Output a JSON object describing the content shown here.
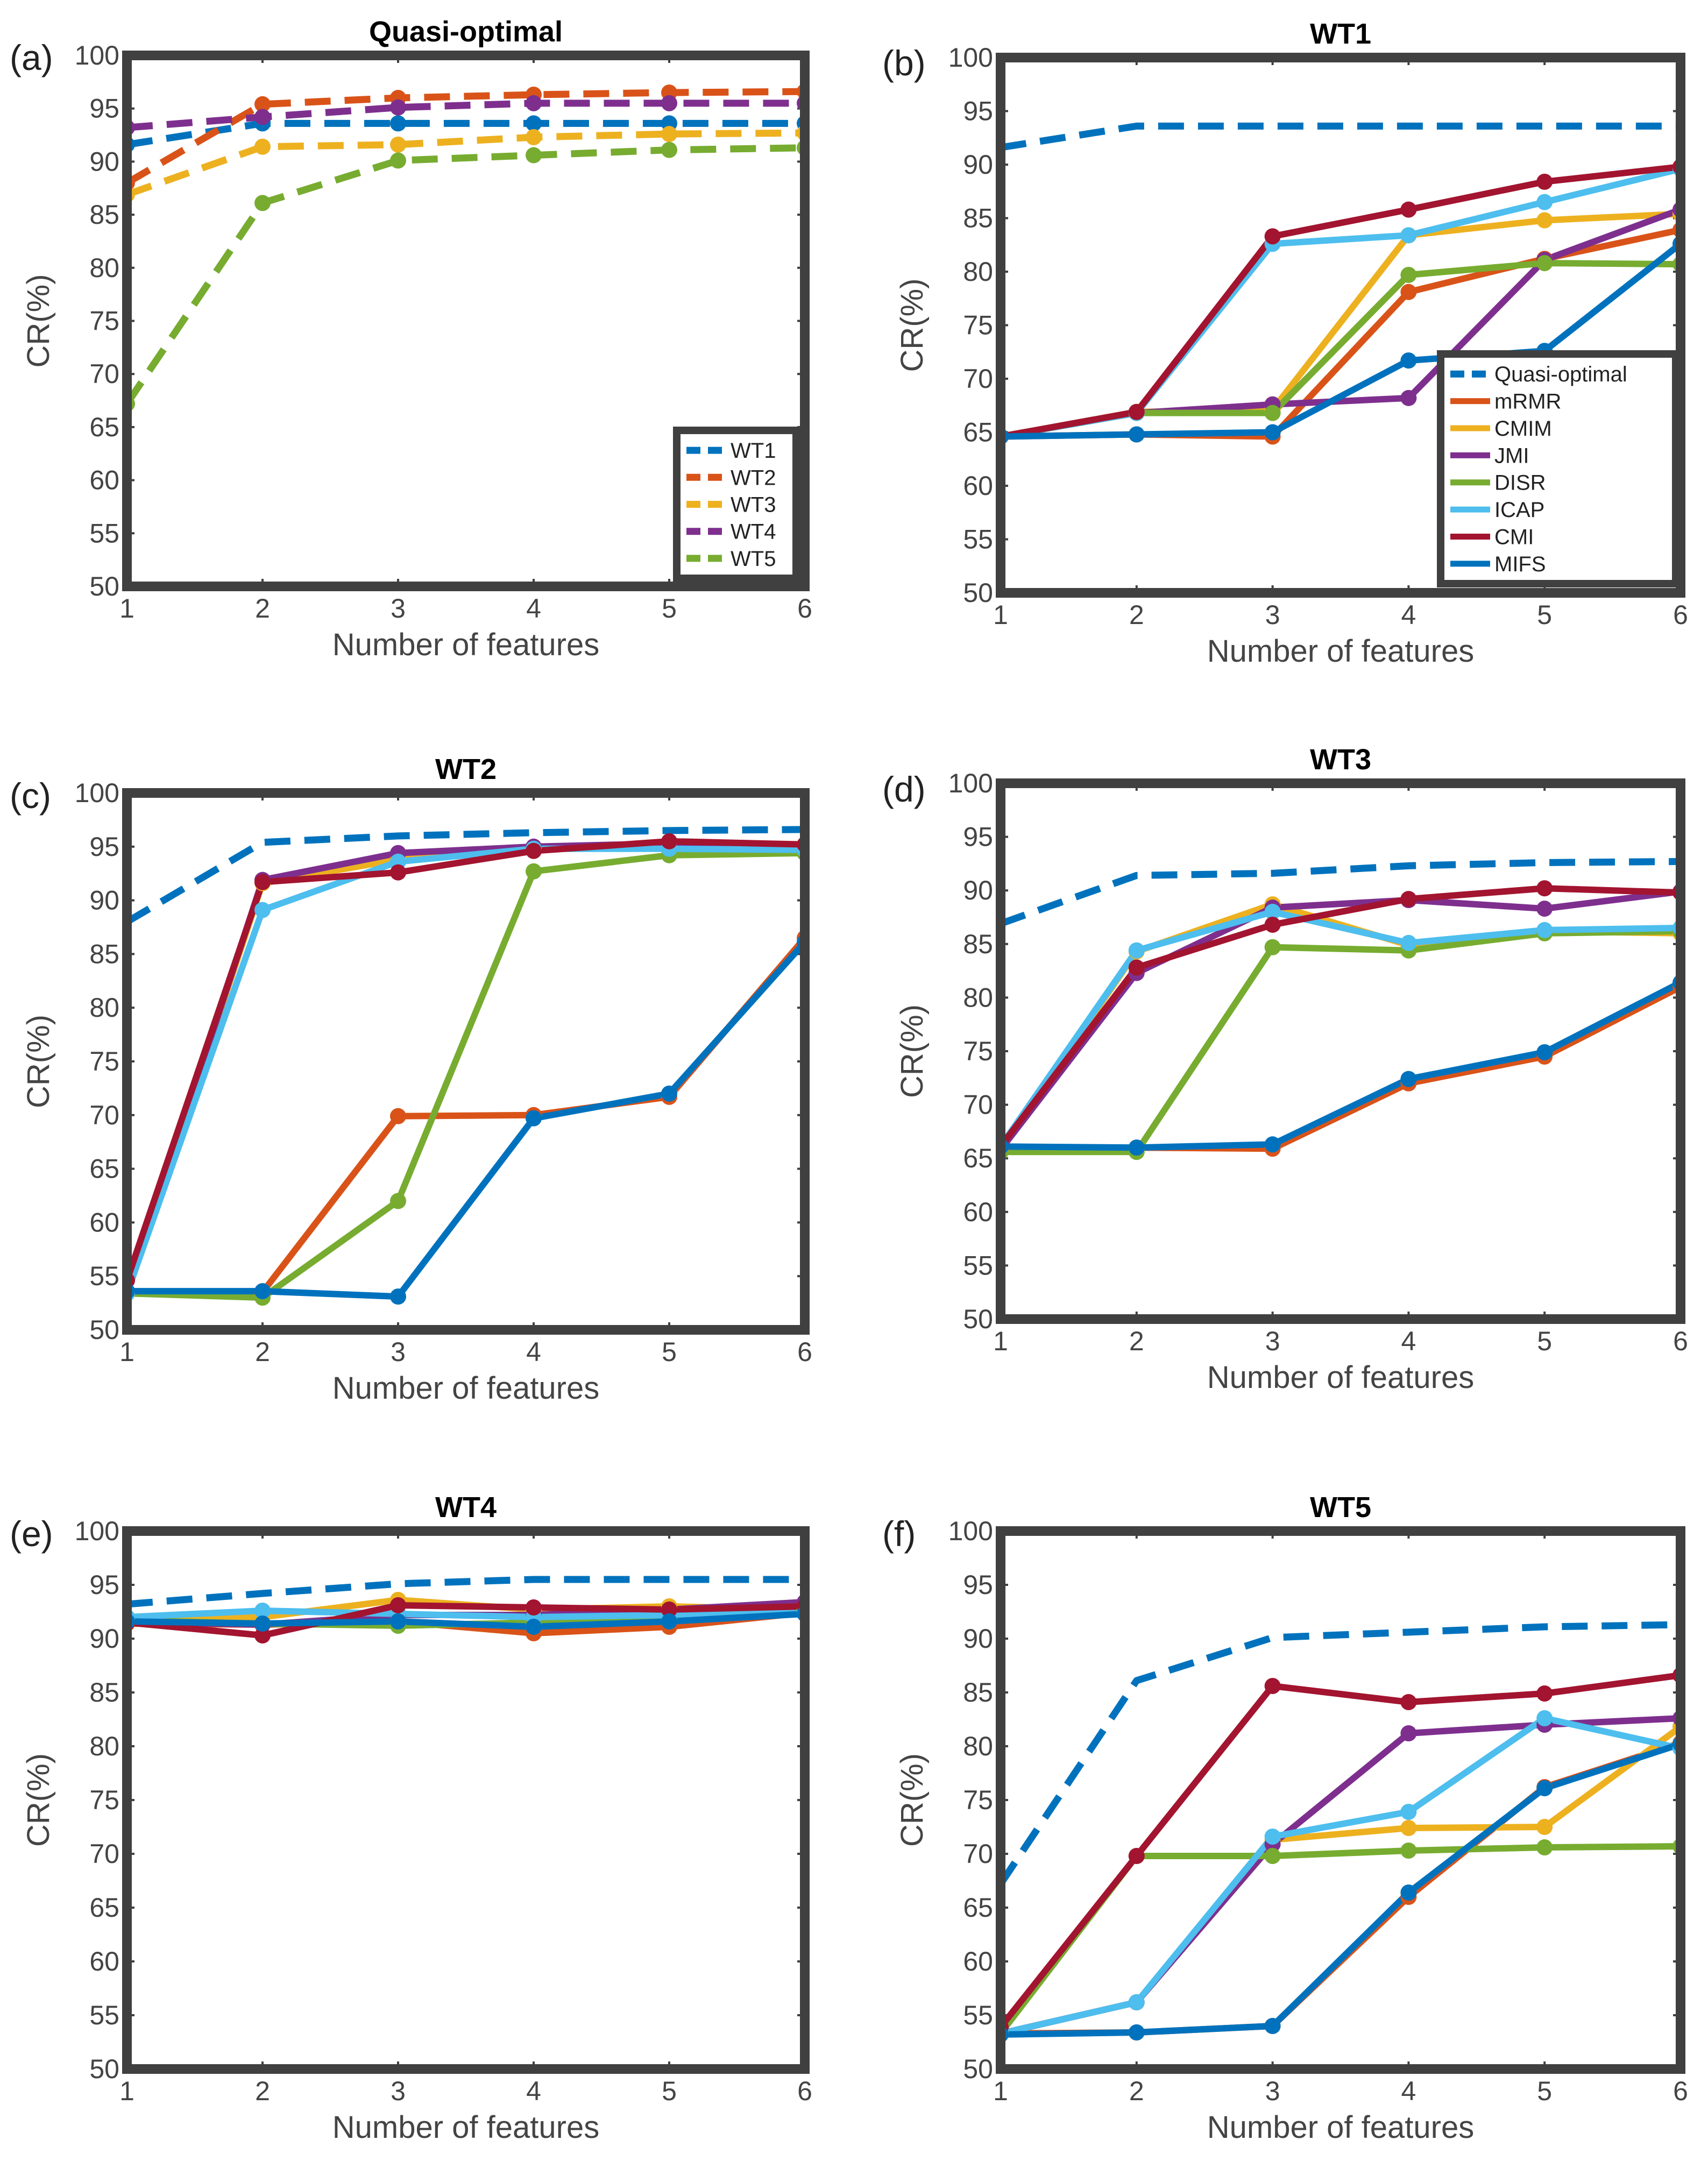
{
  "colors": {
    "blue": "#0072bd",
    "orange": "#d95319",
    "yellow": "#edb120",
    "purple": "#7e2f8e",
    "green": "#77ac30",
    "cyan": "#4dbeee",
    "darkred": "#a2142f",
    "frame": "#404040"
  },
  "chart_data": [
    {
      "type": "line",
      "panel_label": "(a)",
      "title": "Quasi-optimal",
      "xlabel": "Number of features",
      "ylabel": "CR(%)",
      "xlim": [
        1,
        6
      ],
      "ylim": [
        50,
        100
      ],
      "x_ticks": [
        "1",
        "2",
        "3",
        "4",
        "5",
        "6"
      ],
      "y_ticks": [
        "50",
        "55",
        "60",
        "65",
        "70",
        "75",
        "80",
        "85",
        "90",
        "95",
        "100"
      ],
      "legend_position": "bottom-right",
      "x": [
        1,
        2,
        3,
        4,
        5,
        6
      ],
      "series": [
        {
          "name": "WT1",
          "color": "blue",
          "dashed": true,
          "values": [
            91.6,
            93.6,
            93.6,
            93.6,
            93.6,
            93.6
          ]
        },
        {
          "name": "WT2",
          "color": "orange",
          "dashed": true,
          "values": [
            88.0,
            95.4,
            96.0,
            96.3,
            96.5,
            96.6
          ]
        },
        {
          "name": "WT3",
          "color": "yellow",
          "dashed": true,
          "values": [
            86.9,
            91.4,
            91.6,
            92.3,
            92.6,
            92.7
          ]
        },
        {
          "name": "WT4",
          "color": "purple",
          "dashed": true,
          "values": [
            93.2,
            94.2,
            95.1,
            95.5,
            95.5,
            95.5
          ]
        },
        {
          "name": "WT5",
          "color": "green",
          "dashed": true,
          "values": [
            67.2,
            86.1,
            90.1,
            90.6,
            91.1,
            91.3
          ]
        }
      ]
    },
    {
      "type": "line",
      "panel_label": "(b)",
      "title": "WT1",
      "xlabel": "Number of features",
      "ylabel": "CR(%)",
      "xlim": [
        1,
        6
      ],
      "ylim": [
        50,
        100
      ],
      "x_ticks": [
        "1",
        "2",
        "3",
        "4",
        "5",
        "6"
      ],
      "y_ticks": [
        "50",
        "55",
        "60",
        "65",
        "70",
        "75",
        "80",
        "85",
        "90",
        "95",
        "100"
      ],
      "legend_position": "bottom-right",
      "x": [
        1,
        2,
        3,
        4,
        5,
        6
      ],
      "series": [
        {
          "name": "Quasi-optimal",
          "color": "blue",
          "dashed": true,
          "values": [
            91.6,
            93.6,
            93.6,
            93.6,
            93.6,
            93.6
          ]
        },
        {
          "name": "mRMR",
          "color": "orange",
          "dashed": false,
          "values": [
            64.6,
            64.8,
            64.6,
            78.1,
            81.2,
            83.9
          ]
        },
        {
          "name": "CMIM",
          "color": "yellow",
          "dashed": false,
          "values": [
            64.6,
            66.9,
            67.1,
            83.4,
            84.8,
            85.4
          ]
        },
        {
          "name": "JMI",
          "color": "purple",
          "dashed": false,
          "values": [
            64.6,
            66.8,
            67.6,
            68.2,
            81.1,
            85.8
          ]
        },
        {
          "name": "DISR",
          "color": "green",
          "dashed": false,
          "values": [
            64.6,
            66.8,
            66.8,
            79.7,
            80.8,
            80.7
          ]
        },
        {
          "name": "ICAP",
          "color": "cyan",
          "dashed": false,
          "values": [
            64.6,
            66.8,
            82.6,
            83.4,
            86.5,
            89.6
          ]
        },
        {
          "name": "CMI",
          "color": "darkred",
          "dashed": false,
          "values": [
            64.6,
            66.9,
            83.3,
            85.8,
            88.4,
            89.8
          ]
        },
        {
          "name": "MIFS",
          "color": "blue",
          "dashed": false,
          "values": [
            64.6,
            64.8,
            65.0,
            71.7,
            72.6,
            82.6
          ]
        }
      ]
    },
    {
      "type": "line",
      "panel_label": "(c)",
      "title": "WT2",
      "xlabel": "Number of features",
      "ylabel": "CR(%)",
      "xlim": [
        1,
        6
      ],
      "ylim": [
        50,
        100
      ],
      "x_ticks": [
        "1",
        "2",
        "3",
        "4",
        "5",
        "6"
      ],
      "y_ticks": [
        "50",
        "55",
        "60",
        "65",
        "70",
        "75",
        "80",
        "85",
        "90",
        "95",
        "100"
      ],
      "x": [
        1,
        2,
        3,
        4,
        5,
        6
      ],
      "series": [
        {
          "name": "Quasi-optimal",
          "color": "blue",
          "dashed": true,
          "values": [
            88.0,
            95.4,
            96.0,
            96.3,
            96.5,
            96.6
          ]
        },
        {
          "name": "mRMR",
          "color": "orange",
          "dashed": false,
          "values": [
            53.4,
            53.5,
            69.9,
            70.0,
            71.7,
            86.5
          ]
        },
        {
          "name": "CMIM",
          "color": "yellow",
          "dashed": false,
          "values": [
            53.4,
            91.6,
            93.8,
            94.8,
            95.0,
            94.5
          ]
        },
        {
          "name": "JMI",
          "color": "purple",
          "dashed": false,
          "values": [
            53.4,
            91.9,
            94.4,
            95.0,
            95.3,
            95.1
          ]
        },
        {
          "name": "DISR",
          "color": "green",
          "dashed": false,
          "values": [
            53.4,
            53.0,
            62.0,
            92.7,
            94.2,
            94.4
          ]
        },
        {
          "name": "ICAP",
          "color": "cyan",
          "dashed": false,
          "values": [
            53.4,
            89.1,
            93.6,
            94.8,
            94.8,
            94.7
          ]
        },
        {
          "name": "CMI",
          "color": "darkred",
          "dashed": false,
          "values": [
            54.6,
            91.7,
            92.6,
            94.6,
            95.5,
            95.2
          ]
        },
        {
          "name": "MIFS",
          "color": "blue",
          "dashed": false,
          "values": [
            53.6,
            53.6,
            53.1,
            69.7,
            72.0,
            86.1
          ]
        }
      ]
    },
    {
      "type": "line",
      "panel_label": "(d)",
      "title": "WT3",
      "xlabel": "Number of features",
      "ylabel": "CR(%)",
      "xlim": [
        1,
        6
      ],
      "ylim": [
        50,
        100
      ],
      "x_ticks": [
        "1",
        "2",
        "3",
        "4",
        "5",
        "6"
      ],
      "y_ticks": [
        "50",
        "55",
        "60",
        "65",
        "70",
        "75",
        "80",
        "85",
        "90",
        "95",
        "100"
      ],
      "x": [
        1,
        2,
        3,
        4,
        5,
        6
      ],
      "series": [
        {
          "name": "Quasi-optimal",
          "color": "blue",
          "dashed": true,
          "values": [
            86.9,
            91.4,
            91.6,
            92.3,
            92.6,
            92.7
          ]
        },
        {
          "name": "mRMR",
          "color": "orange",
          "dashed": false,
          "values": [
            65.8,
            66.0,
            65.9,
            72.0,
            74.5,
            81.0
          ]
        },
        {
          "name": "CMIM",
          "color": "yellow",
          "dashed": false,
          "values": [
            65.8,
            84.3,
            88.7,
            84.9,
            86.2,
            86.0
          ]
        },
        {
          "name": "JMI",
          "color": "purple",
          "dashed": false,
          "values": [
            65.8,
            82.3,
            88.4,
            89.1,
            88.3,
            89.9
          ]
        },
        {
          "name": "DISR",
          "color": "green",
          "dashed": false,
          "values": [
            65.6,
            65.6,
            84.7,
            84.4,
            86.0,
            86.2
          ]
        },
        {
          "name": "ICAP",
          "color": "cyan",
          "dashed": false,
          "values": [
            66.1,
            84.4,
            88.0,
            85.1,
            86.3,
            86.5
          ]
        },
        {
          "name": "CMI",
          "color": "darkred",
          "dashed": false,
          "values": [
            66.1,
            82.8,
            86.8,
            89.2,
            90.2,
            89.8
          ]
        },
        {
          "name": "MIFS",
          "color": "blue",
          "dashed": false,
          "values": [
            66.1,
            66.0,
            66.3,
            72.4,
            74.9,
            81.4
          ]
        }
      ]
    },
    {
      "type": "line",
      "panel_label": "(e)",
      "title": "WT4",
      "xlabel": "Number of features",
      "ylabel": "CR(%)",
      "xlim": [
        1,
        6
      ],
      "ylim": [
        50,
        100
      ],
      "x_ticks": [
        "1",
        "2",
        "3",
        "4",
        "5",
        "6"
      ],
      "y_ticks": [
        "50",
        "55",
        "60",
        "65",
        "70",
        "75",
        "80",
        "85",
        "90",
        "95",
        "100"
      ],
      "x": [
        1,
        2,
        3,
        4,
        5,
        6
      ],
      "series": [
        {
          "name": "Quasi-optimal",
          "color": "blue",
          "dashed": true,
          "values": [
            93.2,
            94.2,
            95.1,
            95.5,
            95.5,
            95.5
          ]
        },
        {
          "name": "mRMR",
          "color": "orange",
          "dashed": false,
          "values": [
            91.4,
            91.3,
            91.6,
            90.5,
            91.1,
            92.4
          ]
        },
        {
          "name": "CMIM",
          "color": "yellow",
          "dashed": false,
          "values": [
            91.8,
            92.0,
            93.6,
            92.7,
            93.0,
            92.7
          ]
        },
        {
          "name": "JMI",
          "color": "purple",
          "dashed": false,
          "values": [
            91.6,
            91.3,
            92.2,
            92.2,
            92.7,
            93.4
          ]
        },
        {
          "name": "DISR",
          "color": "green",
          "dashed": false,
          "values": [
            91.7,
            91.4,
            91.2,
            91.5,
            91.7,
            92.5
          ]
        },
        {
          "name": "ICAP",
          "color": "cyan",
          "dashed": false,
          "values": [
            92.0,
            92.6,
            92.3,
            92.0,
            92.2,
            92.4
          ]
        },
        {
          "name": "CMI",
          "color": "darkred",
          "dashed": false,
          "values": [
            91.5,
            90.3,
            93.1,
            92.9,
            92.7,
            93.0
          ]
        },
        {
          "name": "MIFS",
          "color": "blue",
          "dashed": false,
          "values": [
            91.6,
            91.4,
            91.6,
            91.1,
            91.6,
            92.3
          ]
        }
      ]
    },
    {
      "type": "line",
      "panel_label": "(f)",
      "title": "WT5",
      "xlabel": "Number of features",
      "ylabel": "CR(%)",
      "xlim": [
        1,
        6
      ],
      "ylim": [
        50,
        100
      ],
      "x_ticks": [
        "1",
        "2",
        "3",
        "4",
        "5",
        "6"
      ],
      "y_ticks": [
        "50",
        "55",
        "60",
        "65",
        "70",
        "75",
        "80",
        "85",
        "90",
        "95",
        "100"
      ],
      "x": [
        1,
        2,
        3,
        4,
        5,
        6
      ],
      "series": [
        {
          "name": "Quasi-optimal",
          "color": "blue",
          "dashed": true,
          "values": [
            67.2,
            86.1,
            90.1,
            90.6,
            91.1,
            91.3
          ]
        },
        {
          "name": "mRMR",
          "color": "orange",
          "dashed": false,
          "values": [
            53.3,
            53.4,
            54.0,
            66.0,
            76.2,
            80.3
          ]
        },
        {
          "name": "CMIM",
          "color": "yellow",
          "dashed": false,
          "values": [
            53.3,
            56.2,
            71.3,
            72.4,
            72.5,
            81.8
          ]
        },
        {
          "name": "JMI",
          "color": "purple",
          "dashed": false,
          "values": [
            53.3,
            56.2,
            70.9,
            81.2,
            82.0,
            82.6
          ]
        },
        {
          "name": "DISR",
          "color": "green",
          "dashed": false,
          "values": [
            53.3,
            69.8,
            69.8,
            70.3,
            70.6,
            70.7
          ]
        },
        {
          "name": "ICAP",
          "color": "cyan",
          "dashed": false,
          "values": [
            53.3,
            56.2,
            71.6,
            73.9,
            82.6,
            79.8
          ]
        },
        {
          "name": "CMI",
          "color": "darkred",
          "dashed": false,
          "values": [
            53.9,
            69.8,
            85.6,
            84.1,
            84.9,
            86.6
          ]
        },
        {
          "name": "MIFS",
          "color": "blue",
          "dashed": false,
          "values": [
            53.2,
            53.4,
            54.0,
            66.4,
            76.1,
            80.2
          ]
        }
      ]
    }
  ]
}
